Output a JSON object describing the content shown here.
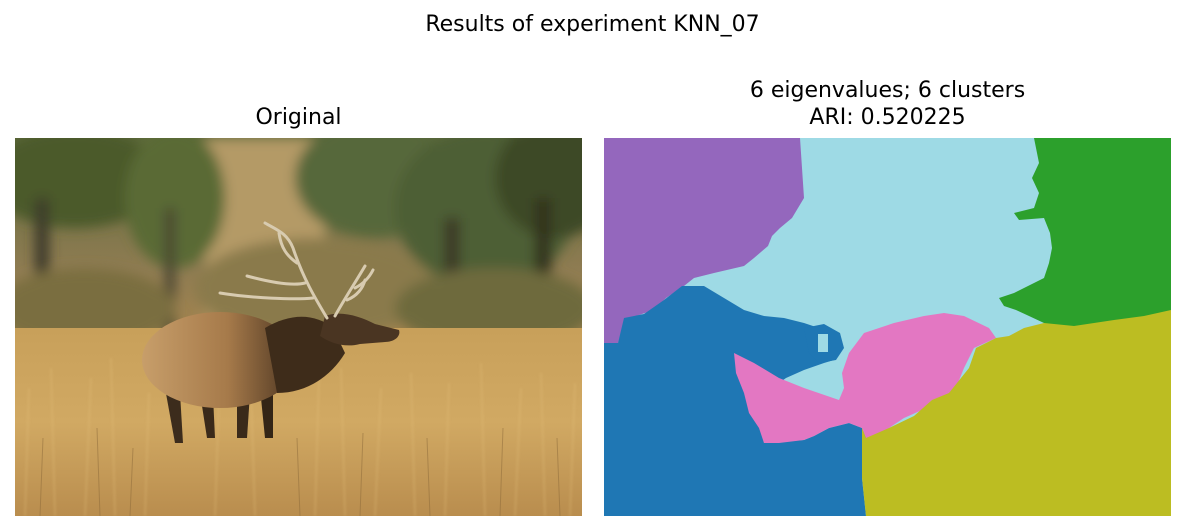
{
  "figure": {
    "suptitle": "Results of experiment KNN_07"
  },
  "left_panel": {
    "title": "Original"
  },
  "right_panel": {
    "title_line1": "6 eigenvalues; 6 clusters",
    "title_line2": "ARI: 0.520225"
  },
  "colors": {
    "purple": "#9467bd",
    "light_blue": "#9edae5",
    "green": "#2ca02c",
    "blue": "#1f77b4",
    "pink": "#e377c2",
    "olive": "#bcbd22"
  }
}
